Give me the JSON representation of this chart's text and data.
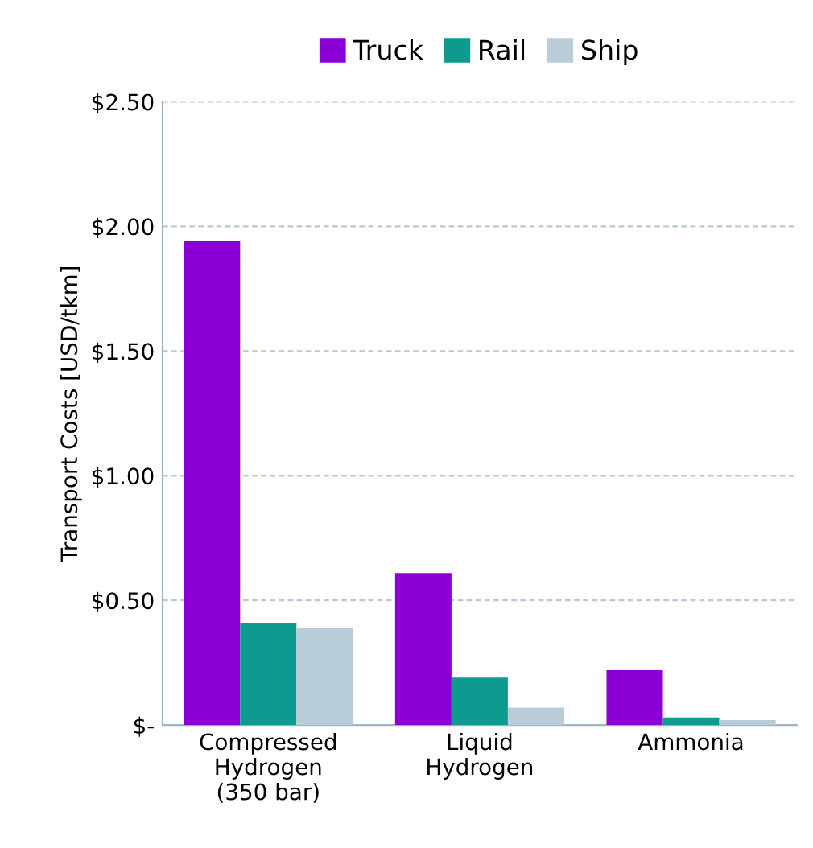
{
  "chart_data": {
    "type": "bar",
    "ylabel": "Transport Costs [USD/tkm]",
    "categories": [
      "Compressed\nHydrogen\n(350 bar)",
      "Liquid\nHydrogen",
      "Ammonia"
    ],
    "series": [
      {
        "name": "Truck",
        "color": "#8b00d6",
        "values": [
          1.94,
          0.61,
          0.22
        ]
      },
      {
        "name": "Rail",
        "color": "#0e9a8e",
        "values": [
          0.41,
          0.19,
          0.03
        ]
      },
      {
        "name": "Ship",
        "color": "#b9cdd8",
        "values": [
          0.39,
          0.07,
          0.02
        ]
      }
    ],
    "ylim": [
      0,
      2.5
    ],
    "yticks": [
      {
        "value": 0,
        "label": "$-"
      },
      {
        "value": 0.5,
        "label": "$0.50"
      },
      {
        "value": 1.0,
        "label": "$1.00"
      },
      {
        "value": 1.5,
        "label": "$1.50"
      },
      {
        "value": 2.0,
        "label": "$2.00"
      },
      {
        "value": 2.5,
        "label": "$2.50"
      }
    ],
    "grid": "y",
    "legend": "top"
  }
}
